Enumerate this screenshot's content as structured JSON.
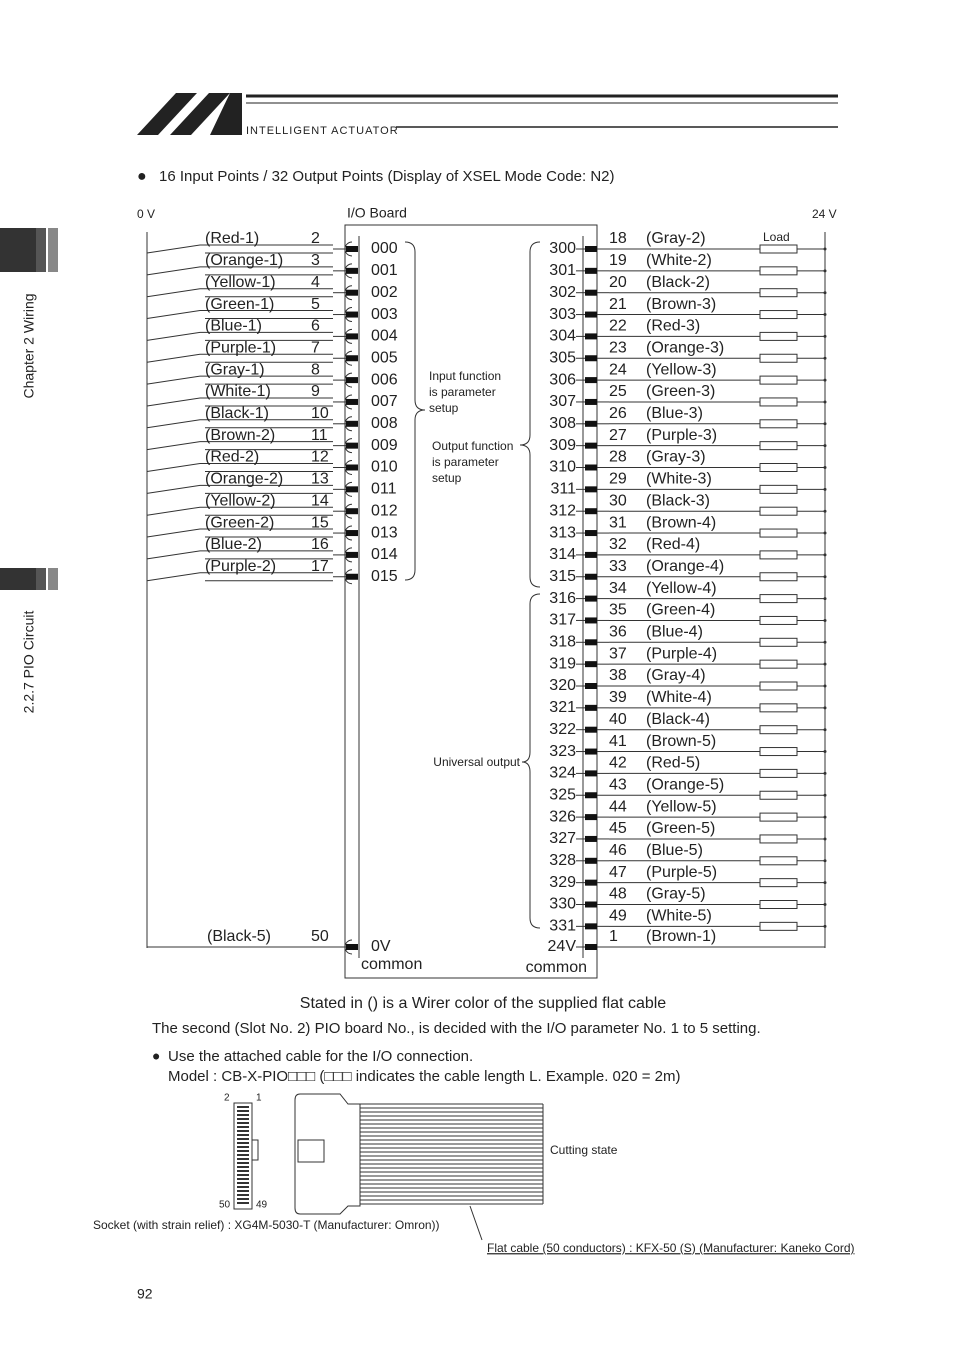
{
  "header": {
    "brand": "INTELLIGENT ACTUATOR"
  },
  "side_tabs": [
    "Chapter 2 Wiring",
    "2.2.7 PIO Circuit"
  ],
  "intro": "16 Input Points / 32 Output Points (Display of XSEL Mode Code: N2)",
  "diagram": {
    "label_0v": "0 V",
    "board": "I/O Board",
    "label_24v": "24 V",
    "load": "Load",
    "inputs": [
      [
        "(Red-1)",
        "2",
        "000"
      ],
      [
        "(Orange-1)",
        "3",
        "001"
      ],
      [
        "(Yellow-1)",
        "4",
        "002"
      ],
      [
        "(Green-1)",
        "5",
        "003"
      ],
      [
        "(Blue-1)",
        "6",
        "004"
      ],
      [
        "(Purple-1)",
        "7",
        "005"
      ],
      [
        "(Gray-1)",
        "8",
        "006"
      ],
      [
        "(White-1)",
        "9",
        "007"
      ],
      [
        "(Black-1)",
        "10",
        "008"
      ],
      [
        "(Brown-2)",
        "11",
        "009"
      ],
      [
        "(Red-2)",
        "12",
        "010"
      ],
      [
        "(Orange-2)",
        "13",
        "011"
      ],
      [
        "(Yellow-2)",
        "14",
        "012"
      ],
      [
        "(Green-2)",
        "15",
        "013"
      ],
      [
        "(Blue-2)",
        "16",
        "014"
      ],
      [
        "(Purple-2)",
        "17",
        "015"
      ]
    ],
    "input_common": {
      "color": "(Black-5)",
      "pin": "50",
      "port": "0V",
      "caption": "common"
    },
    "outputs": [
      [
        "300",
        "18",
        "(Gray-2)"
      ],
      [
        "301",
        "19",
        "(White-2)"
      ],
      [
        "302",
        "20",
        "(Black-2)"
      ],
      [
        "303",
        "21",
        "(Brown-3)"
      ],
      [
        "304",
        "22",
        "(Red-3)"
      ],
      [
        "305",
        "23",
        "(Orange-3)"
      ],
      [
        "306",
        "24",
        "(Yellow-3)"
      ],
      [
        "307",
        "25",
        "(Green-3)"
      ],
      [
        "308",
        "26",
        "(Blue-3)"
      ],
      [
        "309",
        "27",
        "(Purple-3)"
      ],
      [
        "310",
        "28",
        "(Gray-3)"
      ],
      [
        "311",
        "29",
        "(White-3)"
      ],
      [
        "312",
        "30",
        "(Black-3)"
      ],
      [
        "313",
        "31",
        "(Brown-4)"
      ],
      [
        "314",
        "32",
        "(Red-4)"
      ],
      [
        "315",
        "33",
        "(Orange-4)"
      ],
      [
        "316",
        "34",
        "(Yellow-4)"
      ],
      [
        "317",
        "35",
        "(Green-4)"
      ],
      [
        "318",
        "36",
        "(Blue-4)"
      ],
      [
        "319",
        "37",
        "(Purple-4)"
      ],
      [
        "320",
        "38",
        "(Gray-4)"
      ],
      [
        "321",
        "39",
        "(White-4)"
      ],
      [
        "322",
        "40",
        "(Black-4)"
      ],
      [
        "323",
        "41",
        "(Brown-5)"
      ],
      [
        "324",
        "42",
        "(Red-5)"
      ],
      [
        "325",
        "43",
        "(Orange-5)"
      ],
      [
        "326",
        "44",
        "(Yellow-5)"
      ],
      [
        "327",
        "45",
        "(Green-5)"
      ],
      [
        "328",
        "46",
        "(Blue-5)"
      ],
      [
        "329",
        "47",
        "(Purple-5)"
      ],
      [
        "330",
        "48",
        "(Gray-5)"
      ],
      [
        "331",
        "49",
        "(White-5)"
      ]
    ],
    "output_common": {
      "port": "24V",
      "pin": "1",
      "color": "(Brown-1)",
      "caption": "common"
    },
    "notes": {
      "input": [
        "Input function",
        "is parameter",
        "setup"
      ],
      "output": [
        "Output function",
        "is parameter",
        "setup"
      ],
      "universal": "Universal output"
    }
  },
  "caption": "Stated in () is a Wirer color of the supplied flat cable",
  "slot_note": "The second (Slot No. 2) PIO board No., is decided with the I/O parameter No. 1 to 5 setting.",
  "cable": {
    "bullet": "Use the attached cable for the I/O connection.",
    "model": "Model : CB-X-PIO□□□ (□□□ indicates the cable length L. Example. 020 = 2m)",
    "pins": [
      "2",
      "1",
      "50",
      "49"
    ],
    "cutting": "Cutting state",
    "socket": "Socket (with strain relief) : XG4M-5030-T (Manufacturer: Omron))",
    "flat": "Flat cable (50 conductors) : KFX-50 (S) (Manufacturer: Kaneko Cord)"
  },
  "page_number": "92"
}
